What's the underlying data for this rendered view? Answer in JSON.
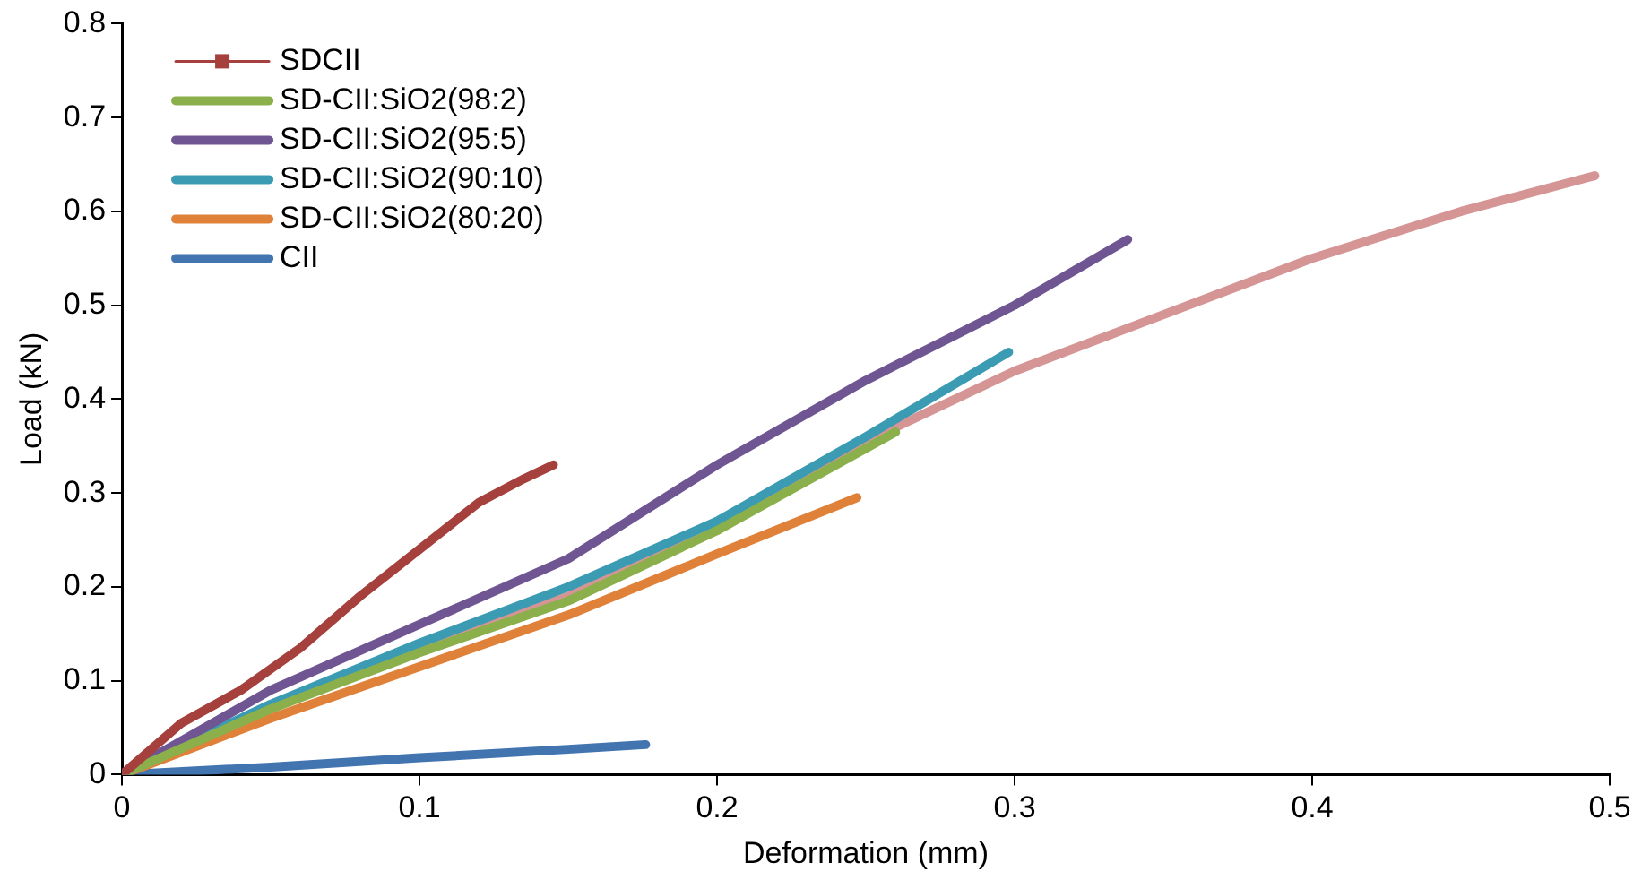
{
  "chart_data": {
    "type": "line",
    "xlabel": "Deformation (mm)",
    "ylabel": "Load (kN)",
    "xlim": [
      0,
      0.5
    ],
    "ylim": [
      0,
      0.8
    ],
    "xticks": [
      0,
      0.1,
      0.2,
      0.3,
      0.4,
      0.5
    ],
    "yticks": [
      0,
      0.1,
      0.2,
      0.3,
      0.4,
      0.5,
      0.6,
      0.7,
      0.8
    ],
    "grid": false,
    "legend": "top left",
    "marker": "none",
    "line_style": "solid",
    "series": [
      {
        "name": "SDCII",
        "color": "#a5403d",
        "x": [
          0,
          0.02,
          0.04,
          0.06,
          0.08,
          0.1,
          0.12,
          0.135,
          0.145
        ],
        "values": [
          0,
          0.055,
          0.09,
          0.135,
          0.19,
          0.24,
          0.29,
          0.315,
          0.33
        ]
      },
      {
        "name": "SD-CII:SiO2(98:2)",
        "color": "#8bb04b",
        "x": [
          0,
          0.05,
          0.1,
          0.15,
          0.2,
          0.26
        ],
        "values": [
          0,
          0.07,
          0.13,
          0.185,
          0.26,
          0.365
        ]
      },
      {
        "name": "SD-CII:SiO2(95:5)",
        "color": "#6f5592",
        "x": [
          0,
          0.05,
          0.1,
          0.15,
          0.2,
          0.25,
          0.3,
          0.338
        ],
        "values": [
          0,
          0.09,
          0.16,
          0.23,
          0.33,
          0.42,
          0.5,
          0.57
        ]
      },
      {
        "name": "SD-CII:SiO2(90:10)",
        "color": "#3b9bb3",
        "x": [
          0,
          0.05,
          0.1,
          0.15,
          0.2,
          0.25,
          0.298
        ],
        "values": [
          0,
          0.075,
          0.14,
          0.2,
          0.27,
          0.36,
          0.45
        ]
      },
      {
        "name": "SD-CII:SiO2(80:20)",
        "color": "#e0813a",
        "x": [
          0,
          0.05,
          0.1,
          0.15,
          0.2,
          0.247
        ],
        "values": [
          0,
          0.06,
          0.115,
          0.17,
          0.235,
          0.295
        ]
      },
      {
        "color": "#d69595",
        "x": [
          0,
          0.05,
          0.1,
          0.15,
          0.2,
          0.25,
          0.3,
          0.35,
          0.4,
          0.45,
          0.495
        ],
        "values": [
          0,
          0.07,
          0.135,
          0.19,
          0.26,
          0.355,
          0.43,
          0.49,
          0.55,
          0.6,
          0.638
        ]
      },
      {
        "name": "CII",
        "color": "#4274b0",
        "x": [
          0,
          0.05,
          0.1,
          0.15,
          0.176
        ],
        "values": [
          0,
          0.008,
          0.018,
          0.027,
          0.032
        ]
      }
    ]
  }
}
